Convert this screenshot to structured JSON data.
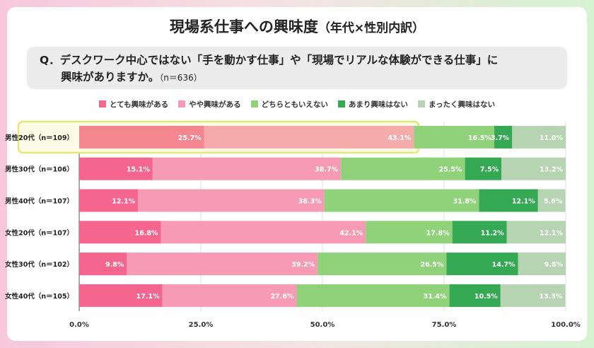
{
  "title": "現場系仕事への興味度",
  "title_sub": "（年代×性別内訳）",
  "question_line1": "Q．デスクワーク中心ではない「手を動かす仕事」や「現場でリアルな体験ができる仕事」に",
  "question_line2": "興味がありますか。",
  "question_n": "（n＝636）",
  "chart_data": {
    "type": "bar",
    "orientation": "horizontal-stacked-100",
    "categories": [
      "男性20代（n＝109）",
      "男性30代（n＝106）",
      "男性40代（n＝107）",
      "女性20代（n＝107）",
      "女性30代（n＝102）",
      "女性40代（n＝105）"
    ],
    "highlighted_category": "男性20代（n＝109）",
    "series": [
      {
        "name": "とても興味がある",
        "color": "#f5668f",
        "values": [
          25.7,
          15.1,
          12.1,
          16.8,
          9.8,
          17.1
        ]
      },
      {
        "name": "やや興味がある",
        "color": "#f79ab5",
        "values": [
          43.1,
          38.7,
          38.3,
          42.1,
          39.2,
          27.6
        ]
      },
      {
        "name": "どちらともいえない",
        "color": "#8fd27a",
        "values": [
          16.5,
          25.5,
          31.8,
          17.8,
          26.5,
          31.4
        ]
      },
      {
        "name": "あまり興味はない",
        "color": "#35a853",
        "values": [
          3.7,
          7.5,
          12.1,
          11.2,
          14.7,
          10.5
        ]
      },
      {
        "name": "まったく興味はない",
        "color": "#b6d4b1",
        "values": [
          11.0,
          13.2,
          5.6,
          12.1,
          9.8,
          13.3
        ]
      }
    ],
    "xlim": [
      0,
      100
    ],
    "xticks": [
      "0.0%",
      "25.0%",
      "50.0%",
      "75.0%",
      "100.0%"
    ],
    "legend": "top",
    "grid": true
  }
}
